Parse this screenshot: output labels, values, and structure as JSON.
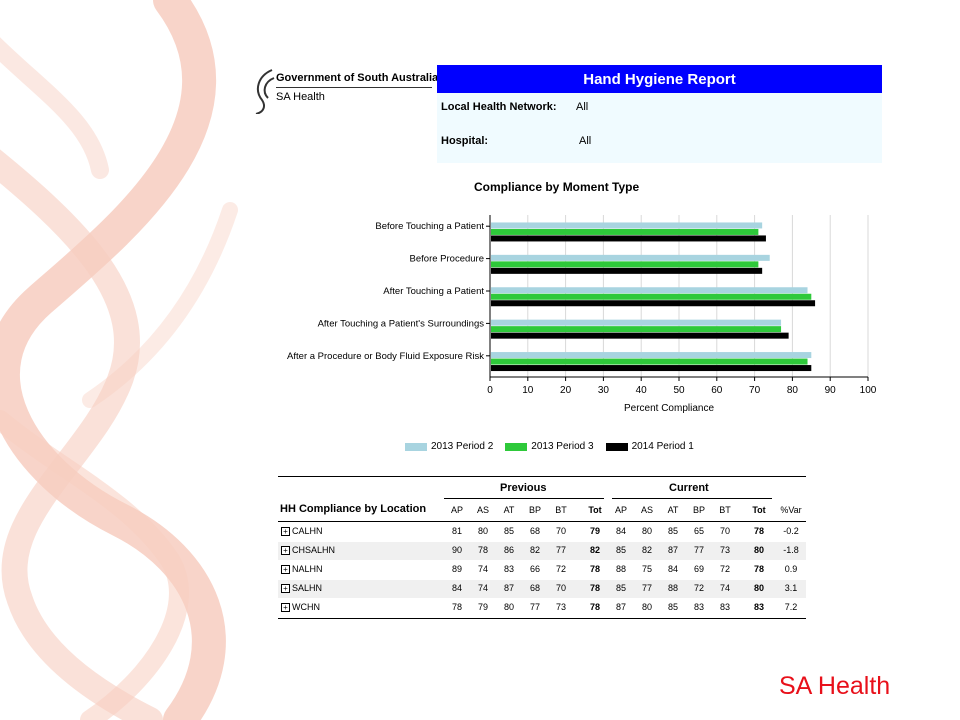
{
  "logo": {
    "line1": "Government of South Australia",
    "line2": "SA Health"
  },
  "report": {
    "title": "Hand Hygiene Report",
    "lhn_label": "Local Health Network:",
    "lhn_value": "All",
    "hospital_label": "Hospital:",
    "hospital_value": "All"
  },
  "chart_data": {
    "type": "bar",
    "orientation": "horizontal",
    "title": "Compliance by Moment Type",
    "xlabel": "Percent Compliance",
    "ylabel": "",
    "xlim": [
      0,
      100
    ],
    "xticks": [
      0,
      10,
      20,
      30,
      40,
      50,
      60,
      70,
      80,
      90,
      100
    ],
    "grid": true,
    "legend_position": "bottom",
    "categories": [
      "Before Touching a Patient",
      "Before Procedure",
      "After Touching a Patient",
      "After Touching a Patient's Surroundings",
      "After a Procedure or Body Fluid Exposure Risk"
    ],
    "series": [
      {
        "name": "2013 Period 2",
        "color": "#a8d4e0",
        "values": [
          72,
          74,
          84,
          77,
          85
        ]
      },
      {
        "name": "2013 Period 3",
        "color": "#2ec93a",
        "values": [
          71,
          71,
          85,
          77,
          84
        ]
      },
      {
        "name": "2014 Period 1",
        "color": "#000000",
        "values": [
          73,
          72,
          86,
          79,
          85
        ]
      }
    ]
  },
  "table": {
    "title": "HH Compliance by Location",
    "group_previous": "Previous",
    "group_current": "Current",
    "columns": [
      "AP",
      "AS",
      "AT",
      "BP",
      "BT",
      "Tot",
      "AP",
      "AS",
      "AT",
      "BP",
      "BT",
      "Tot",
      "%Var"
    ],
    "rows": [
      {
        "name": "CALHN",
        "cells": [
          "81",
          "80",
          "85",
          "68",
          "70",
          "79",
          "84",
          "80",
          "85",
          "65",
          "70",
          "78",
          "-0.2"
        ]
      },
      {
        "name": "CHSALHN",
        "cells": [
          "90",
          "78",
          "86",
          "82",
          "77",
          "82",
          "85",
          "82",
          "87",
          "77",
          "73",
          "80",
          "-1.8"
        ]
      },
      {
        "name": "NALHN",
        "cells": [
          "89",
          "74",
          "83",
          "66",
          "72",
          "78",
          "88",
          "75",
          "84",
          "69",
          "72",
          "78",
          "0.9"
        ]
      },
      {
        "name": "SALHN",
        "cells": [
          "84",
          "74",
          "87",
          "68",
          "70",
          "78",
          "85",
          "77",
          "88",
          "72",
          "74",
          "80",
          "3.1"
        ]
      },
      {
        "name": "WCHN",
        "cells": [
          "78",
          "79",
          "80",
          "77",
          "73",
          "78",
          "87",
          "80",
          "85",
          "83",
          "83",
          "83",
          "7.2"
        ]
      }
    ]
  },
  "footer": {
    "brand": "SA Health"
  },
  "colors": {
    "header_bar": "#0000ff",
    "header_bg": "#f0fbff",
    "brand_red": "#e8101a",
    "ribbon": "#f6c9bd"
  }
}
